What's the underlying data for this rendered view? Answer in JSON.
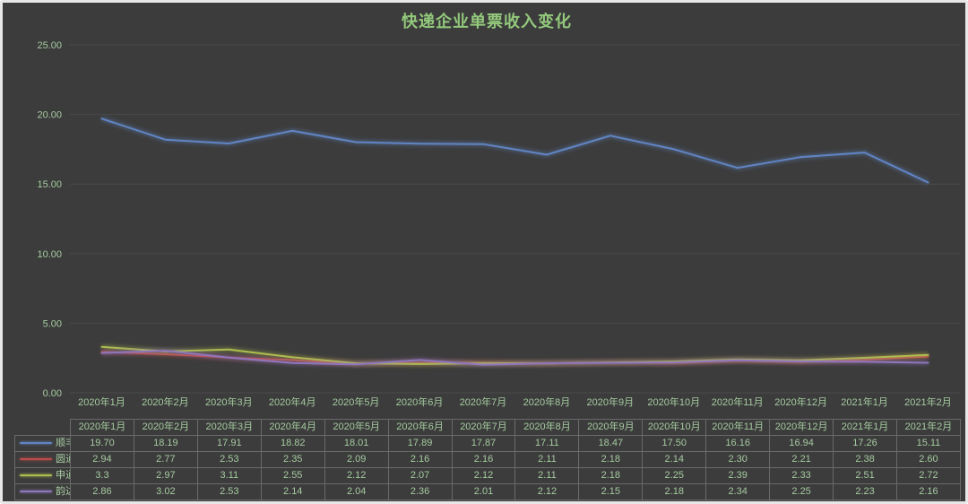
{
  "window": {
    "background": "#3c3c3c",
    "frame_color": "#e7e7e7",
    "grid_color": "#4a4a4a",
    "text_color": "#a5cba0",
    "title_color": "#93c97c",
    "table_border_color": "#6a6a6a"
  },
  "chart_data": {
    "type": "line",
    "title": "快递企业单票收入变化",
    "xlabel": "",
    "ylabel": "",
    "grid": true,
    "legend_position": "table-left",
    "y_axis": {
      "min": 0,
      "max": 25,
      "step": 5,
      "tick_values": [
        0,
        5,
        10,
        15,
        20,
        25
      ],
      "tick_labels": [
        "0.00",
        "5.00",
        "10.00",
        "15.00",
        "20.00",
        "25.00"
      ]
    },
    "categories": [
      "2020年1月",
      "2020年2月",
      "2020年3月",
      "2020年4月",
      "2020年5月",
      "2020年6月",
      "2020年7月",
      "2020年8月",
      "2020年9月",
      "2020年10月",
      "2020年11月",
      "2020年12月",
      "2021年1月",
      "2021年2月"
    ],
    "series": [
      {
        "id": "shunfeng",
        "name": "顺丰",
        "color": "#6185c4",
        "values": [
          19.7,
          18.19,
          17.91,
          18.82,
          18.01,
          17.89,
          17.87,
          17.11,
          18.47,
          17.5,
          16.16,
          16.94,
          17.26,
          15.11
        ],
        "display": [
          "19.70",
          "18.19",
          "17.91",
          "18.82",
          "18.01",
          "17.89",
          "17.87",
          "17.11",
          "18.47",
          "17.50",
          "16.16",
          "16.94",
          "17.26",
          "15.11"
        ]
      },
      {
        "id": "yuantong",
        "name": "圆通",
        "color": "#bf4c4c",
        "values": [
          2.94,
          2.77,
          2.53,
          2.35,
          2.09,
          2.16,
          2.16,
          2.11,
          2.18,
          2.14,
          2.3,
          2.21,
          2.38,
          2.6
        ],
        "display": [
          "2.94",
          "2.77",
          "2.53",
          "2.35",
          "2.09",
          "2.16",
          "2.16",
          "2.11",
          "2.18",
          "2.14",
          "2.30",
          "2.21",
          "2.38",
          "2.60"
        ]
      },
      {
        "id": "shentong",
        "name": "申通",
        "color": "#aebd4f",
        "values": [
          3.3,
          2.97,
          3.11,
          2.55,
          2.12,
          2.07,
          2.12,
          2.11,
          2.18,
          2.25,
          2.39,
          2.33,
          2.51,
          2.72
        ],
        "display": [
          "3.3",
          "2.97",
          "3.11",
          "2.55",
          "2.12",
          "2.07",
          "2.12",
          "2.11",
          "2.18",
          "2.25",
          "2.39",
          "2.33",
          "2.51",
          "2.72"
        ]
      },
      {
        "id": "yunda",
        "name": "韵达",
        "color": "#8e76bd",
        "values": [
          2.86,
          3.02,
          2.53,
          2.14,
          2.04,
          2.36,
          2.01,
          2.12,
          2.15,
          2.18,
          2.34,
          2.25,
          2.23,
          2.16
        ],
        "display": [
          "2.86",
          "3.02",
          "2.53",
          "2.14",
          "2.04",
          "2.36",
          "2.01",
          "2.12",
          "2.15",
          "2.18",
          "2.34",
          "2.25",
          "2.23",
          "2.16"
        ]
      }
    ]
  }
}
